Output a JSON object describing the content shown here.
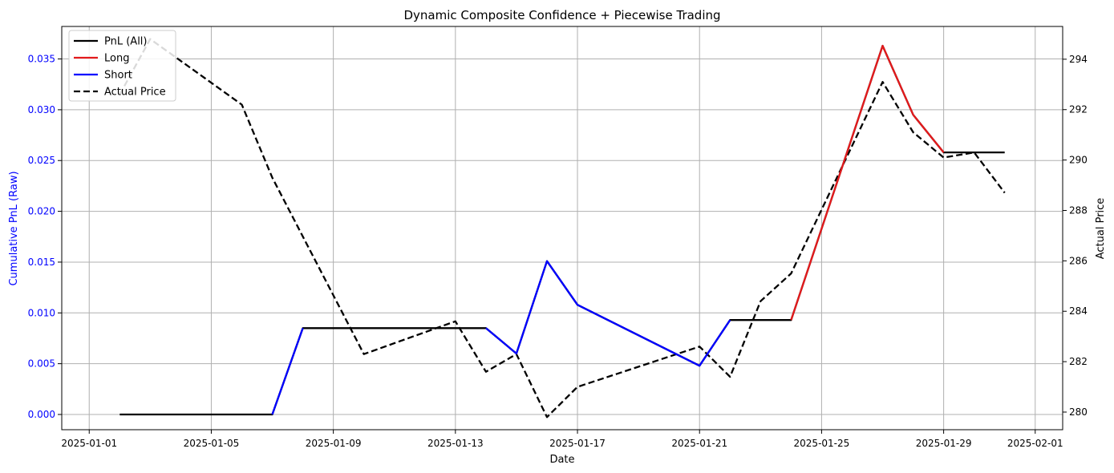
{
  "chart_data": {
    "type": "line",
    "title": "Dynamic Composite Confidence + Piecewise Trading",
    "xlabel": "Date",
    "ylabel_left": "Cumulative PnL (Raw)",
    "ylabel_right": "Actual Price",
    "x_ticks": [
      "2025-01-01",
      "2025-01-05",
      "2025-01-09",
      "2025-01-13",
      "2025-01-17",
      "2025-01-21",
      "2025-01-25",
      "2025-01-29",
      "2025-02-01"
    ],
    "x_range": [
      "2025-01-01",
      "2025-02-01"
    ],
    "y_left_ticks": [
      "0.000",
      "0.005",
      "0.010",
      "0.015",
      "0.020",
      "0.025",
      "0.030",
      "0.035"
    ],
    "y_left_range": [
      -0.0015,
      0.0382
    ],
    "y_right_ticks": [
      "280",
      "282",
      "284",
      "286",
      "288",
      "290",
      "292",
      "294"
    ],
    "y_right_range": [
      279.3,
      295.3
    ],
    "grid": true,
    "legend_position": "top-left",
    "colors": {
      "all": "#000000",
      "long": "#e31a1c",
      "short": "#0000ff",
      "price": "#000000",
      "left_axis_label": "#0000ff"
    },
    "series": [
      {
        "name": "PnL (All)",
        "axis": "left",
        "style": "solid",
        "x": [
          "2025-01-02",
          "2025-01-03",
          "2025-01-04",
          "2025-01-05",
          "2025-01-06",
          "2025-01-07",
          "2025-01-08",
          "2025-01-09",
          "2025-01-10",
          "2025-01-11",
          "2025-01-12",
          "2025-01-13",
          "2025-01-14",
          "2025-01-15",
          "2025-01-16",
          "2025-01-17",
          "2025-01-21",
          "2025-01-22",
          "2025-01-23",
          "2025-01-24",
          "2025-01-27",
          "2025-01-28",
          "2025-01-29",
          "2025-01-30",
          "2025-01-31"
        ],
        "values": [
          0.0,
          0.0,
          0.0,
          0.0,
          0.0,
          0.0,
          0.0085,
          0.0085,
          0.0085,
          0.0085,
          0.0085,
          0.0085,
          0.0085,
          0.006,
          0.0151,
          0.0108,
          0.0048,
          0.0093,
          0.0093,
          0.0093,
          0.0363,
          0.0295,
          0.0258,
          0.0258,
          0.0258
        ]
      },
      {
        "name": "Long",
        "axis": "left",
        "style": "solid",
        "segments": [
          {
            "x": [
              "2025-01-24",
              "2025-01-27",
              "2025-01-28",
              "2025-01-29"
            ],
            "values": [
              0.0093,
              0.0363,
              0.0295,
              0.0258
            ]
          }
        ]
      },
      {
        "name": "Short",
        "axis": "left",
        "style": "solid",
        "segments": [
          {
            "x": [
              "2025-01-07",
              "2025-01-08"
            ],
            "values": [
              0.0,
              0.0085
            ]
          },
          {
            "x": [
              "2025-01-14",
              "2025-01-15",
              "2025-01-16",
              "2025-01-17",
              "2025-01-21",
              "2025-01-22"
            ],
            "values": [
              0.0085,
              0.006,
              0.0151,
              0.0108,
              0.0048,
              0.0093
            ]
          }
        ]
      },
      {
        "name": "Actual Price",
        "axis": "right",
        "style": "dashed",
        "x": [
          "2025-01-02",
          "2025-01-03",
          "2025-01-06",
          "2025-01-07",
          "2025-01-10",
          "2025-01-13",
          "2025-01-14",
          "2025-01-15",
          "2025-01-16",
          "2025-01-17",
          "2025-01-21",
          "2025-01-22",
          "2025-01-23",
          "2025-01-24",
          "2025-01-27",
          "2025-01-28",
          "2025-01-29",
          "2025-01-30",
          "2025-01-31"
        ],
        "values": [
          292.6,
          294.8,
          292.2,
          289.3,
          282.3,
          283.6,
          281.6,
          282.3,
          279.8,
          281.0,
          282.6,
          281.4,
          284.4,
          285.5,
          293.1,
          291.1,
          290.1,
          290.3,
          288.7
        ]
      }
    ]
  }
}
